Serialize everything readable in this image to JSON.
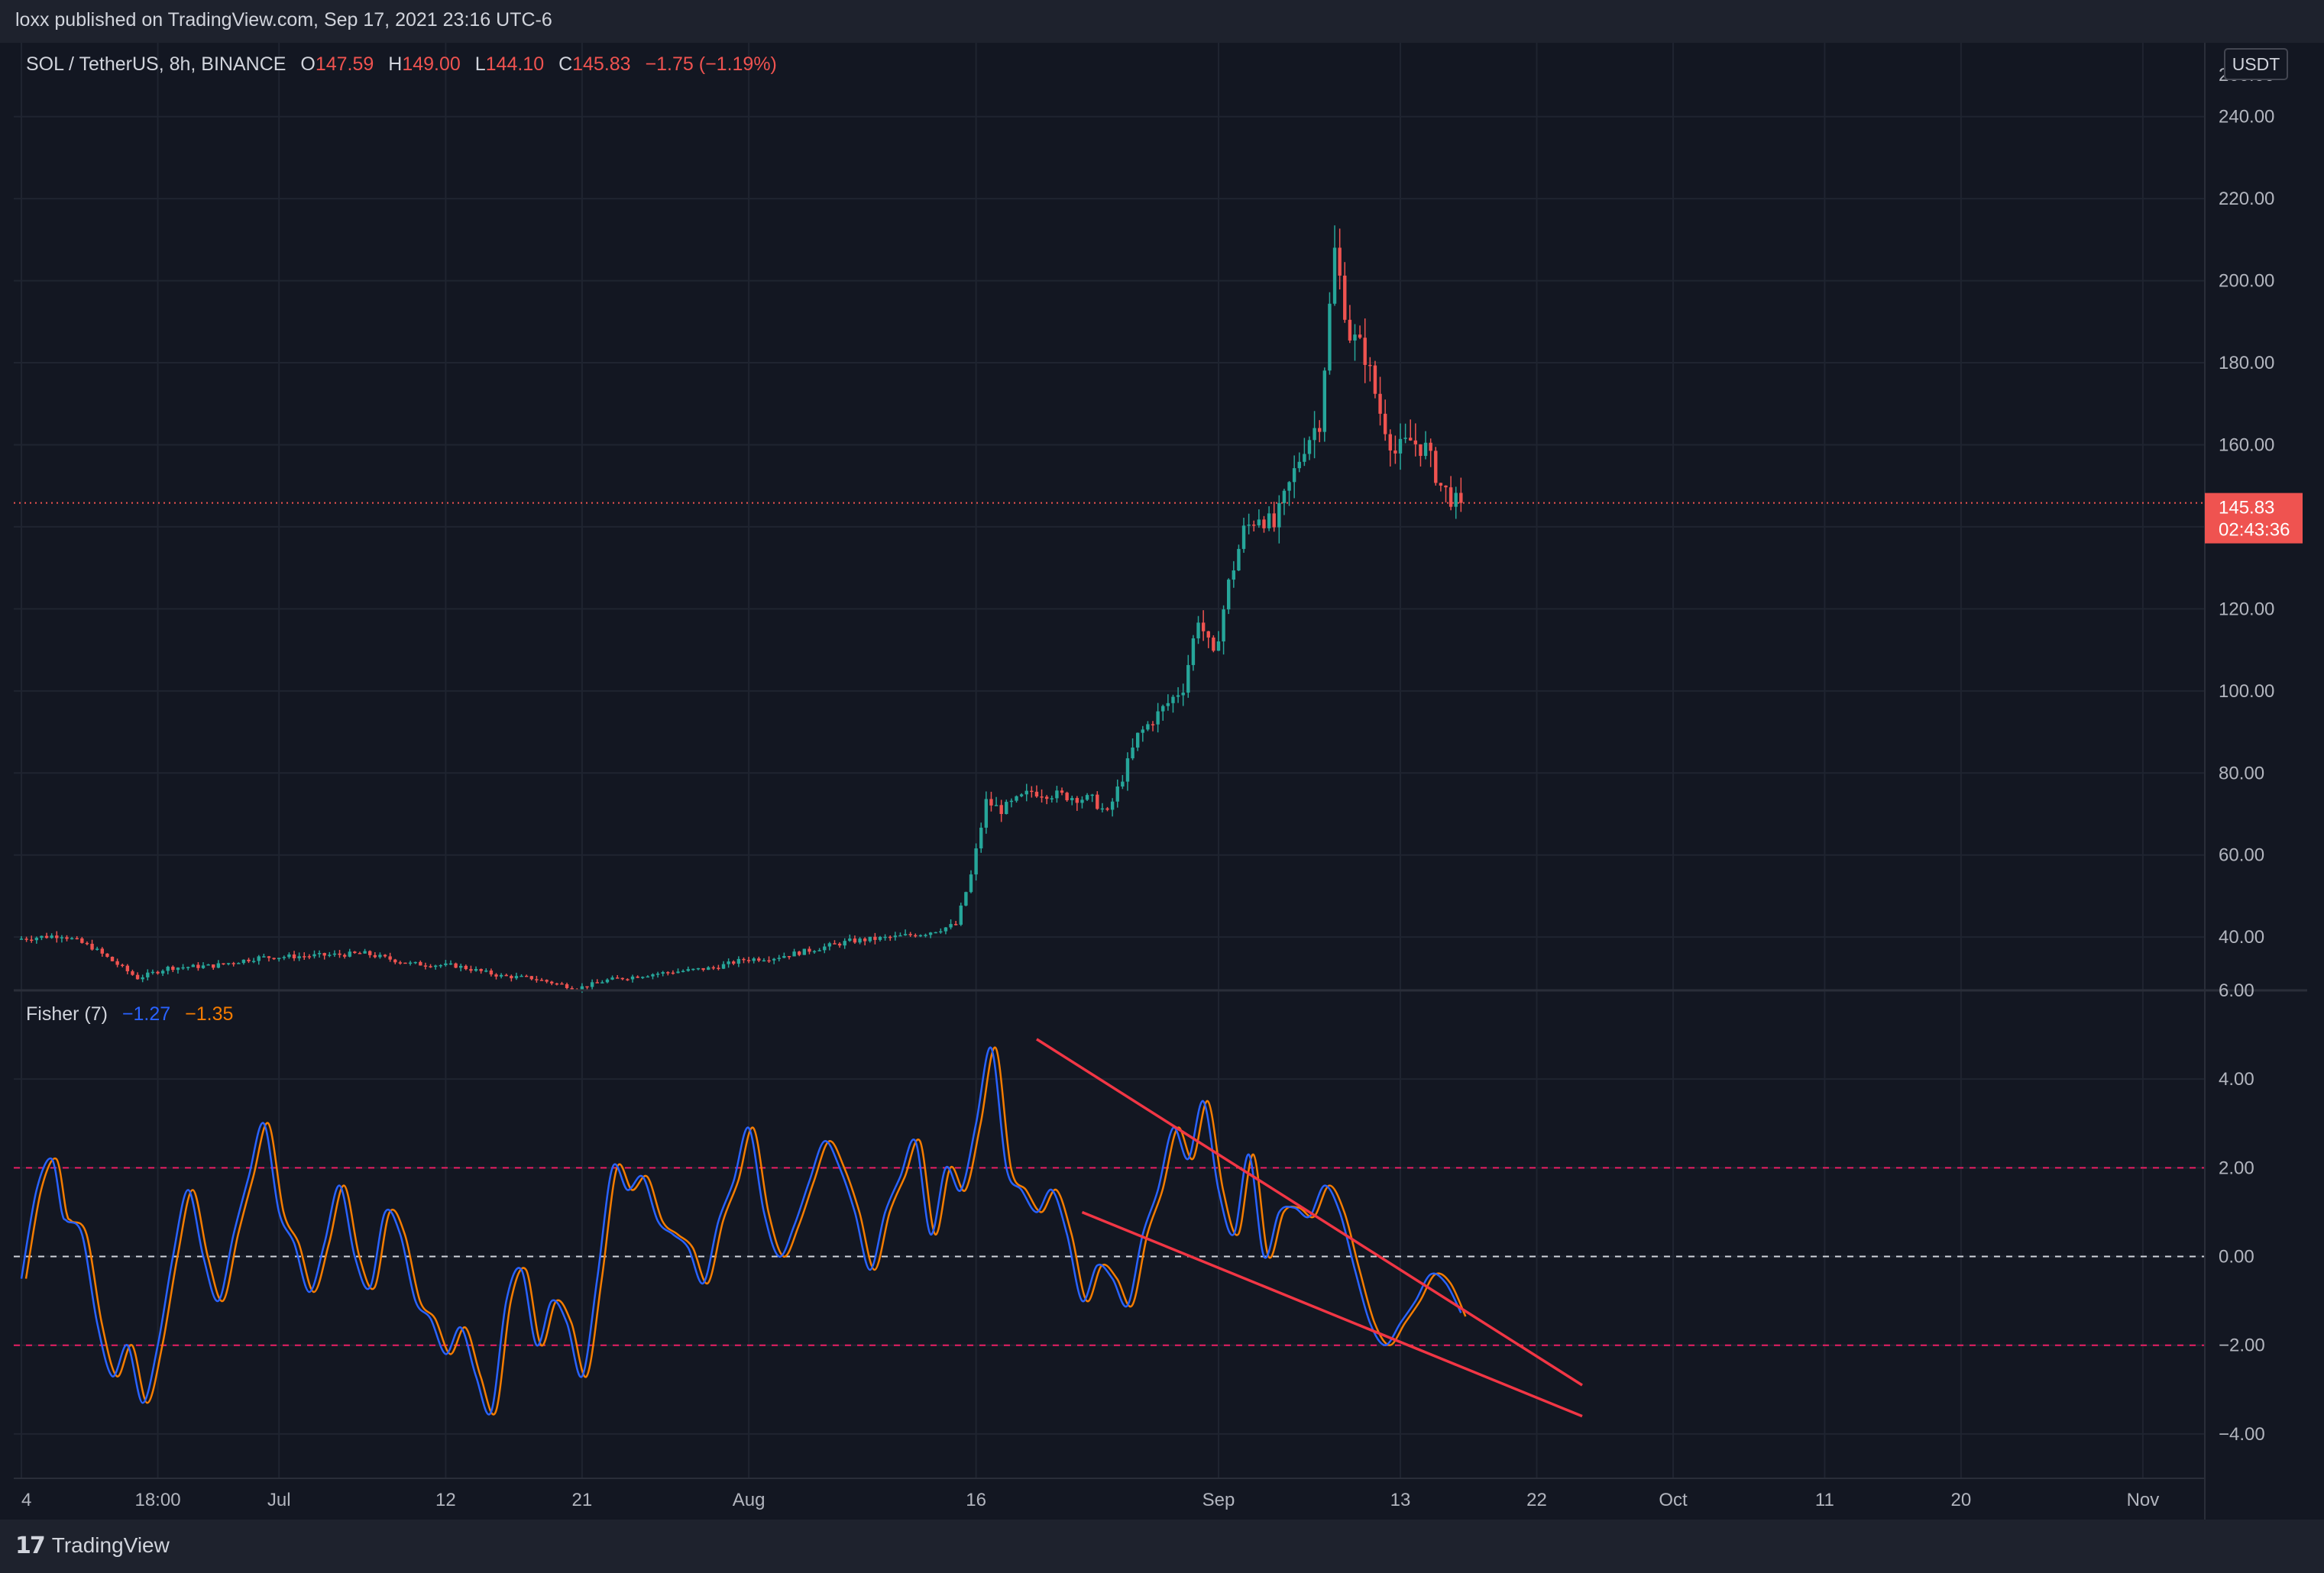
{
  "header": {
    "published": "loxx published on TradingView.com, Sep 17, 2021 23:16 UTC-6"
  },
  "legend": {
    "symbol": "SOL / TetherUS, 8h, BINANCE",
    "o_label": "O",
    "o_value": "147.59",
    "h_label": "H",
    "h_value": "149.00",
    "l_label": "L",
    "l_value": "144.10",
    "c_label": "C",
    "c_value": "145.83",
    "change": "−1.75 (−1.19%)"
  },
  "indicator": {
    "name": "Fisher (7)",
    "v1": "−1.27",
    "v2": "−1.35"
  },
  "price_axis": {
    "currency": "USDT",
    "top_partial": "260.00",
    "current_price": "145.83",
    "countdown": "02:43:36"
  },
  "footer": {
    "brand": "TradingView"
  },
  "colors": {
    "background": "#131722",
    "up": "#26a69a",
    "down": "#ef5350",
    "fisher": "#2962ff",
    "trigger": "#f57c00",
    "trendline": "#f23645",
    "level_line": "#e91e63"
  },
  "chart_data": [
    {
      "type": "candlestick",
      "title": "SOL / TetherUS, 8h, BINANCE",
      "ylabel": "USDT",
      "ylim": [
        27,
        258
      ],
      "y_ticks": [
        40,
        60,
        80,
        100,
        120,
        140,
        160,
        180,
        200,
        220,
        240
      ],
      "y_tick_labels": [
        "40.00",
        "60.00",
        "80.00",
        "100.00",
        "120.00",
        "",
        "160.00",
        "180.00",
        "200.00",
        "220.00",
        "240.00"
      ],
      "x_ticks": [
        "4",
        "18:00",
        "Jul",
        "12",
        "21",
        "Aug",
        "16",
        "Sep",
        "13",
        "22",
        "Oct",
        "11",
        "20",
        "Nov"
      ],
      "x_tick_dates": [
        "2021-06-14",
        "2021-06-23",
        "2021-07-01",
        "2021-07-12",
        "2021-07-21",
        "2021-08-01",
        "2021-08-16",
        "2021-09-01",
        "2021-09-13",
        "2021-09-22",
        "2021-10-01",
        "2021-10-11",
        "2021-10-20",
        "2021-11-01"
      ],
      "interval": "8h",
      "price_path": [
        [
          "2021-06-14",
          39.5
        ],
        [
          "2021-06-17",
          40.5
        ],
        [
          "2021-06-19",
          37.5
        ],
        [
          "2021-06-22",
          30.0
        ],
        [
          "2021-06-24",
          32.5
        ],
        [
          "2021-06-27",
          33.0
        ],
        [
          "2021-06-30",
          35.0
        ],
        [
          "2021-07-04",
          35.5
        ],
        [
          "2021-07-07",
          36.0
        ],
        [
          "2021-07-10",
          33.5
        ],
        [
          "2021-07-13",
          33.0
        ],
        [
          "2021-07-16",
          30.5
        ],
        [
          "2021-07-18",
          30.0
        ],
        [
          "2021-07-21",
          27.5
        ],
        [
          "2021-07-23",
          29.5
        ],
        [
          "2021-07-26",
          31.0
        ],
        [
          "2021-07-30",
          32.5
        ],
        [
          "2021-08-01",
          34.5
        ],
        [
          "2021-08-03",
          35.0
        ],
        [
          "2021-08-05",
          36.5
        ],
        [
          "2021-08-08",
          39.0
        ],
        [
          "2021-08-11",
          40.0
        ],
        [
          "2021-08-13",
          41.0
        ],
        [
          "2021-08-15",
          43.0
        ],
        [
          "2021-08-16",
          55.0
        ],
        [
          "2021-08-17",
          73.0
        ],
        [
          "2021-08-18",
          71.0
        ],
        [
          "2021-08-20",
          75.5
        ],
        [
          "2021-08-22",
          74.5
        ],
        [
          "2021-08-24",
          73.5
        ],
        [
          "2021-08-25",
          70.0
        ],
        [
          "2021-08-26",
          79.0
        ],
        [
          "2021-08-27",
          89.0
        ],
        [
          "2021-08-28",
          93.0
        ],
        [
          "2021-08-30",
          101.0
        ],
        [
          "2021-08-31",
          118.0
        ],
        [
          "2021-09-01",
          108.0
        ],
        [
          "2021-09-02",
          126.0
        ],
        [
          "2021-09-03",
          139.0
        ],
        [
          "2021-09-04",
          143.0
        ],
        [
          "2021-09-05",
          140.0
        ],
        [
          "2021-09-06",
          150.0
        ],
        [
          "2021-09-07",
          160.0
        ],
        [
          "2021-09-08",
          166.0
        ],
        [
          "2021-09-09",
          207.0
        ],
        [
          "2021-09-10",
          187.0
        ],
        [
          "2021-09-11",
          182.0
        ],
        [
          "2021-09-12",
          168.0
        ],
        [
          "2021-09-13",
          158.0
        ],
        [
          "2021-09-14",
          161.0
        ],
        [
          "2021-09-15",
          159.0
        ],
        [
          "2021-09-16",
          150.0
        ],
        [
          "2021-09-17",
          145.83
        ]
      ],
      "extremes": {
        "high": 215.5,
        "low": 27.0,
        "last_close": 145.83
      }
    },
    {
      "type": "line",
      "title": "Fisher (7)",
      "ylim": [
        -5.0,
        6.0
      ],
      "y_ticks": [
        -4,
        -2,
        0,
        2,
        4,
        6
      ],
      "y_tick_labels": [
        "−4.00",
        "−2.00",
        "0.00",
        "2.00",
        "4.00",
        "6.00"
      ],
      "levels": [
        2.0,
        0.0,
        -2.0
      ],
      "series": [
        {
          "name": "",
          "color": "#2962ff",
          "points": [
            [
              "2021-06-14",
              -0.5
            ],
            [
              "2021-06-15",
              1.5
            ],
            [
              "2021-06-16",
              2.2
            ],
            [
              "2021-06-16T16",
              1.0
            ],
            [
              "2021-06-17",
              0.8
            ],
            [
              "2021-06-18",
              0.5
            ],
            [
              "2021-06-19",
              -1.5
            ],
            [
              "2021-06-20",
              -2.7
            ],
            [
              "2021-06-21",
              -2.0
            ],
            [
              "2021-06-22",
              -3.3
            ],
            [
              "2021-06-23",
              -2.0
            ],
            [
              "2021-06-24",
              0.0
            ],
            [
              "2021-06-25",
              1.5
            ],
            [
              "2021-06-26",
              0.0
            ],
            [
              "2021-06-27",
              -1.0
            ],
            [
              "2021-06-28",
              0.5
            ],
            [
              "2021-06-29",
              1.8
            ],
            [
              "2021-06-30",
              3.0
            ],
            [
              "2021-07-01",
              1.0
            ],
            [
              "2021-07-02",
              0.3
            ],
            [
              "2021-07-03",
              -0.8
            ],
            [
              "2021-07-04",
              0.3
            ],
            [
              "2021-07-05",
              1.6
            ],
            [
              "2021-07-06",
              0.0
            ],
            [
              "2021-07-07",
              -0.7
            ],
            [
              "2021-07-08",
              1.0
            ],
            [
              "2021-07-09",
              0.5
            ],
            [
              "2021-07-10",
              -1.0
            ],
            [
              "2021-07-11",
              -1.4
            ],
            [
              "2021-07-12",
              -2.2
            ],
            [
              "2021-07-13",
              -1.6
            ],
            [
              "2021-07-14",
              -2.7
            ],
            [
              "2021-07-15",
              -3.5
            ],
            [
              "2021-07-16",
              -1.0
            ],
            [
              "2021-07-17",
              -0.3
            ],
            [
              "2021-07-18",
              -2.0
            ],
            [
              "2021-07-19",
              -1.0
            ],
            [
              "2021-07-20",
              -1.5
            ],
            [
              "2021-07-21",
              -2.7
            ],
            [
              "2021-07-22",
              -0.5
            ],
            [
              "2021-07-23",
              2.0
            ],
            [
              "2021-07-24",
              1.5
            ],
            [
              "2021-07-25",
              1.8
            ],
            [
              "2021-07-26",
              0.8
            ],
            [
              "2021-07-27",
              0.5
            ],
            [
              "2021-07-28",
              0.2
            ],
            [
              "2021-07-29",
              -0.6
            ],
            [
              "2021-07-30",
              0.8
            ],
            [
              "2021-07-31",
              1.7
            ],
            [
              "2021-08-01",
              2.9
            ],
            [
              "2021-08-02",
              1.0
            ],
            [
              "2021-08-03",
              0.0
            ],
            [
              "2021-08-04",
              0.7
            ],
            [
              "2021-08-05",
              1.7
            ],
            [
              "2021-08-06",
              2.6
            ],
            [
              "2021-08-07",
              2.0
            ],
            [
              "2021-08-08",
              1.0
            ],
            [
              "2021-08-09",
              -0.3
            ],
            [
              "2021-08-10",
              1.0
            ],
            [
              "2021-08-11",
              1.8
            ],
            [
              "2021-08-12",
              2.6
            ],
            [
              "2021-08-13",
              0.5
            ],
            [
              "2021-08-14",
              2.0
            ],
            [
              "2021-08-15",
              1.5
            ],
            [
              "2021-08-16",
              3.0
            ],
            [
              "2021-08-17",
              4.7
            ],
            [
              "2021-08-18",
              2.0
            ],
            [
              "2021-08-19",
              1.5
            ],
            [
              "2021-08-20",
              1.0
            ],
            [
              "2021-08-21",
              1.5
            ],
            [
              "2021-08-22",
              0.5
            ],
            [
              "2021-08-23",
              -1.0
            ],
            [
              "2021-08-24",
              -0.2
            ],
            [
              "2021-08-25",
              -0.5
            ],
            [
              "2021-08-26",
              -1.1
            ],
            [
              "2021-08-27",
              0.5
            ],
            [
              "2021-08-28",
              1.5
            ],
            [
              "2021-08-29",
              2.9
            ],
            [
              "2021-08-30",
              2.2
            ],
            [
              "2021-08-31",
              3.5
            ],
            [
              "2021-09-01",
              1.5
            ],
            [
              "2021-09-02",
              0.5
            ],
            [
              "2021-09-03",
              2.3
            ],
            [
              "2021-09-04",
              0.0
            ],
            [
              "2021-09-05",
              1.0
            ],
            [
              "2021-09-06",
              1.1
            ],
            [
              "2021-09-07",
              0.9
            ],
            [
              "2021-09-08",
              1.6
            ],
            [
              "2021-09-09",
              1.0
            ],
            [
              "2021-09-10",
              -0.3
            ],
            [
              "2021-09-11",
              -1.5
            ],
            [
              "2021-09-12",
              -2.0
            ],
            [
              "2021-09-13",
              -1.5
            ],
            [
              "2021-09-14",
              -1.0
            ],
            [
              "2021-09-15",
              -0.4
            ],
            [
              "2021-09-16",
              -0.6
            ],
            [
              "2021-09-17",
              -1.27
            ]
          ]
        },
        {
          "name": "",
          "color": "#f57c00",
          "lag_of_series": 0,
          "last_value": -1.35
        }
      ],
      "trendlines": [
        {
          "from": [
            "2021-08-20",
            4.9
          ],
          "to": [
            "2021-09-25",
            -2.9
          ]
        },
        {
          "from": [
            "2021-08-23",
            1.0
          ],
          "to": [
            "2021-09-25",
            -3.6
          ]
        }
      ]
    }
  ]
}
